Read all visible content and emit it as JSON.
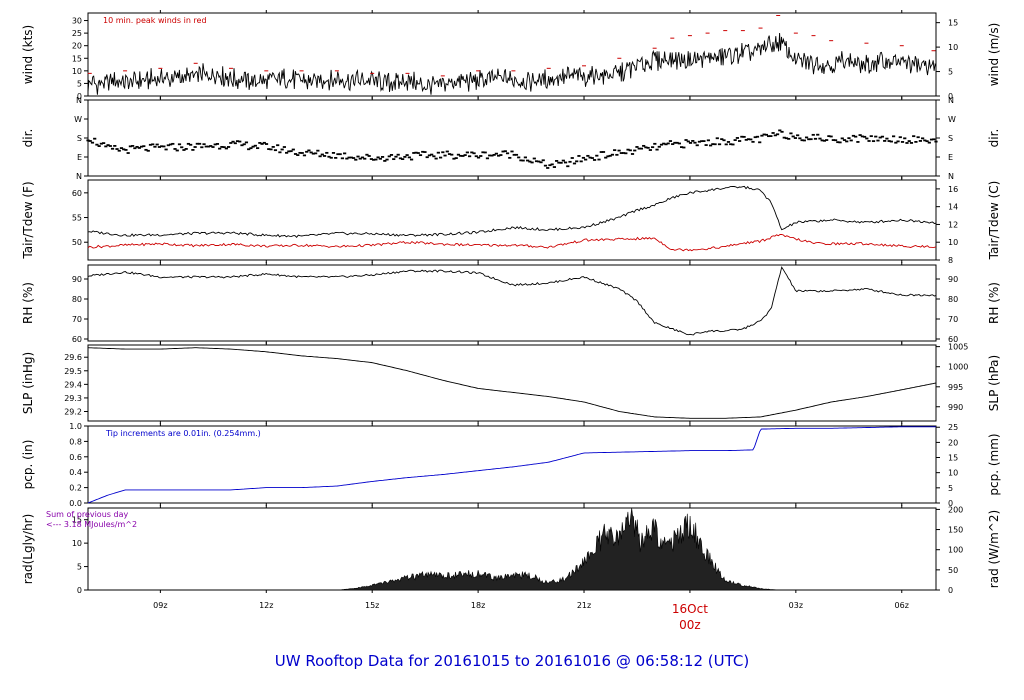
{
  "page": {
    "title": "UW Rooftop Data for 20161015  to  20161016 @ 06:58:12  (UTC)"
  },
  "chart_data": {
    "type": "line",
    "time_axis": {
      "ticks": [
        "09z",
        "12z",
        "15z",
        "18z",
        "21z",
        "00z",
        "03z",
        "06z"
      ],
      "date_label": "16Oct",
      "date_hour": "00z"
    },
    "panels": [
      {
        "id": "wind",
        "type": "line",
        "ylabel_left": "wind (kts)",
        "ylabel_right": "wind (m/s)",
        "ylim": [
          0,
          33
        ],
        "yticks_left": [
          0,
          5,
          10,
          15,
          20,
          25,
          30
        ],
        "yticks_right": [
          {
            "label": "0",
            "value": 0
          },
          {
            "label": "5",
            "value": 9.72
          },
          {
            "label": "10",
            "value": 19.44
          },
          {
            "label": "15",
            "value": 29.16
          }
        ],
        "annotation": "10 min. peak winds in red",
        "series": [
          {
            "color": "#000000",
            "x": [
              6.95,
              7.5,
              8.0,
              8.5,
              9.0,
              9.5,
              10.0,
              10.5,
              11.0,
              11.5,
              12.0,
              12.5,
              13.0,
              13.5,
              14.0,
              14.5,
              15.0,
              15.5,
              16.0,
              16.5,
              17.0,
              17.5,
              18.0,
              18.5,
              19.0,
              19.5,
              20.0,
              20.5,
              21.0,
              21.5,
              22.0,
              22.5,
              23.0,
              23.5,
              24.0,
              24.5,
              25.0,
              25.5,
              26.0,
              26.5,
              27.0,
              27.5,
              28.0,
              28.5,
              29.0,
              29.5,
              30.0,
              30.5,
              30.97
            ],
            "y": [
              5,
              5,
              6,
              6,
              7,
              7,
              8,
              9,
              7,
              6,
              6,
              7,
              6,
              6,
              7,
              6,
              6,
              5,
              6,
              4,
              5,
              6,
              6,
              7,
              7,
              6,
              7,
              8,
              8,
              8,
              9,
              12,
              14,
              15,
              14,
              15,
              16,
              17,
              18,
              22,
              14,
              13,
              13,
              14,
              12,
              14,
              13,
              12,
              12
            ]
          }
        ],
        "peaks": {
          "color": "#cc0000",
          "x": [
            7.0,
            8.0,
            9.0,
            10.0,
            11.0,
            12.0,
            13.0,
            14.0,
            15.0,
            16.0,
            17.0,
            18.0,
            19.0,
            20.0,
            21.0,
            22.0,
            23.0,
            23.5,
            24.0,
            24.5,
            25.0,
            25.5,
            26.0,
            26.5,
            27.0,
            27.5,
            28.0,
            29.0,
            30.0,
            30.9
          ],
          "y": [
            9,
            10,
            11,
            13,
            11,
            10,
            10,
            10,
            9,
            9,
            8,
            10,
            10,
            11,
            12,
            15,
            19,
            23,
            24,
            25,
            26,
            26,
            27,
            32,
            25,
            24,
            22,
            21,
            20,
            18
          ]
        }
      },
      {
        "id": "dir",
        "type": "scatter",
        "ylabel_left": "dir.",
        "ylabel_right": "dir.",
        "ylim": [
          0,
          360
        ],
        "yticks_left": [
          {
            "label": "N",
            "value": 0
          },
          {
            "label": "E",
            "value": 90
          },
          {
            "label": "S",
            "value": 180
          },
          {
            "label": "W",
            "value": 270
          },
          {
            "label": "N",
            "value": 360
          }
        ],
        "yticks_right": [
          {
            "label": "N",
            "value": 0
          },
          {
            "label": "E",
            "value": 90
          },
          {
            "label": "S",
            "value": 180
          },
          {
            "label": "W",
            "value": 270
          },
          {
            "label": "N",
            "value": 360
          }
        ],
        "series": [
          {
            "color": "#000000",
            "x": [
              6.95,
              7.5,
              8.0,
              9.0,
              10.0,
              11.0,
              12.0,
              13.0,
              14.0,
              15.0,
              16.0,
              17.0,
              18.0,
              19.0,
              19.5,
              20.0,
              20.5,
              21.0,
              22.0,
              23.0,
              23.5,
              24.0,
              25.0,
              26.0,
              26.5,
              27.0,
              28.0,
              29.0,
              30.0,
              30.97
            ],
            "y": [
              185,
              130,
              125,
              135,
              140,
              150,
              140,
              110,
              100,
              85,
              95,
              100,
              100,
              105,
              75,
              50,
              60,
              85,
              110,
              135,
              150,
              155,
              165,
              175,
              200,
              190,
              175,
              180,
              175,
              170
            ]
          }
        ]
      },
      {
        "id": "temp",
        "type": "line",
        "ylabel_left": "Tair/Tdew (F)",
        "ylabel_right": "Tair/Tdew (C)",
        "ylim": [
          46.4,
          62.6
        ],
        "yticks_left": [
          50,
          55,
          60
        ],
        "yticks_right": [
          {
            "label": "8",
            "value": 46.4
          },
          {
            "label": "10",
            "value": 50
          },
          {
            "label": "12",
            "value": 53.6
          },
          {
            "label": "14",
            "value": 57.2
          },
          {
            "label": "16",
            "value": 60.8
          }
        ],
        "series": [
          {
            "name": "Tair",
            "color": "#000000",
            "x": [
              6.95,
              8.0,
              9.0,
              10.0,
              11.0,
              12.0,
              13.0,
              14.0,
              15.0,
              16.0,
              17.0,
              18.0,
              19.0,
              20.0,
              21.0,
              22.0,
              22.5,
              23.0,
              23.5,
              24.0,
              24.5,
              25.0,
              25.5,
              26.0,
              26.3,
              26.6,
              27.0,
              28.0,
              29.0,
              30.0,
              30.97
            ],
            "y": [
              52.2,
              51.4,
              51.5,
              51.8,
              51.9,
              51.4,
              51.2,
              51.8,
              51.7,
              51.4,
              51.6,
              52.0,
              53.0,
              52.5,
              53.0,
              55.0,
              56.5,
              57.5,
              59.0,
              60.0,
              60.5,
              61.0,
              61.2,
              60.5,
              58.0,
              52.5,
              54.0,
              54.5,
              54.0,
              54.5,
              54.0
            ]
          },
          {
            "name": "Tdew",
            "color": "#cc0000",
            "x": [
              6.95,
              8.0,
              9.0,
              10.0,
              11.0,
              12.0,
              13.0,
              14.0,
              15.0,
              16.0,
              17.0,
              18.0,
              19.0,
              20.0,
              21.0,
              22.0,
              23.0,
              23.5,
              24.0,
              24.5,
              25.0,
              25.5,
              26.0,
              26.5,
              26.8,
              27.5,
              28.0,
              29.0,
              30.0,
              30.97
            ],
            "y": [
              49.0,
              49.4,
              49.7,
              49.3,
              49.6,
              49.2,
              49.4,
              49.1,
              49.4,
              50.0,
              49.6,
              49.4,
              49.4,
              49.0,
              50.4,
              50.6,
              50.8,
              48.5,
              48.5,
              48.7,
              49.1,
              49.8,
              50.2,
              51.5,
              51.0,
              49.8,
              49.7,
              49.7,
              49.2,
              49.1
            ]
          }
        ]
      },
      {
        "id": "rh",
        "type": "line",
        "ylabel_left": "RH (%)",
        "ylabel_right": "RH (%)",
        "ylim": [
          59,
          97
        ],
        "yticks_left": [
          60,
          70,
          80,
          90
        ],
        "yticks_right": [
          {
            "label": "60",
            "value": 60
          },
          {
            "label": "70",
            "value": 70
          },
          {
            "label": "80",
            "value": 80
          },
          {
            "label": "90",
            "value": 90
          }
        ],
        "series": [
          {
            "color": "#000000",
            "x": [
              6.95,
              8.0,
              9.0,
              10.0,
              11.0,
              12.0,
              13.0,
              14.0,
              15.0,
              16.0,
              17.0,
              18.0,
              19.0,
              20.0,
              21.0,
              22.0,
              22.5,
              23.0,
              23.5,
              24.0,
              24.5,
              25.0,
              25.5,
              26.0,
              26.3,
              26.6,
              27.0,
              28.0,
              29.0,
              30.0,
              30.97
            ],
            "y": [
              91.5,
              93.5,
              91.0,
              91.0,
              91.0,
              92.5,
              91.0,
              91.0,
              92.0,
              94.0,
              94.0,
              93.0,
              87.0,
              88.0,
              91.0,
              85.0,
              79.0,
              68.0,
              65.0,
              62.0,
              64.0,
              64.0,
              65.0,
              69.0,
              75.0,
              96.0,
              84.0,
              84.0,
              85.0,
              82.0,
              82.0
            ]
          }
        ]
      },
      {
        "id": "slp",
        "type": "line",
        "ylabel_left": "SLP (inHg)",
        "ylabel_right": "SLP (hPa)",
        "ylim": [
          29.13,
          29.69
        ],
        "yticks_left": [
          29.2,
          29.3,
          29.4,
          29.5,
          29.6
        ],
        "yticks_right": [
          {
            "label": "990",
            "value": 29.235
          },
          {
            "label": "995",
            "value": 29.382
          },
          {
            "label": "1000",
            "value": 29.53
          },
          {
            "label": "1005",
            "value": 29.678
          }
        ],
        "series": [
          {
            "color": "#000000",
            "x": [
              6.95,
              8.0,
              9.0,
              10.0,
              11.0,
              12.0,
              13.0,
              14.0,
              15.0,
              16.0,
              17.0,
              18.0,
              19.0,
              20.0,
              21.0,
              22.0,
              23.0,
              24.0,
              25.0,
              26.0,
              27.0,
              28.0,
              29.0,
              30.0,
              30.97
            ],
            "y": [
              29.67,
              29.66,
              29.66,
              29.67,
              29.66,
              29.64,
              29.61,
              29.59,
              29.56,
              29.5,
              29.43,
              29.37,
              29.34,
              29.31,
              29.27,
              29.2,
              29.16,
              29.15,
              29.15,
              29.16,
              29.21,
              29.27,
              29.31,
              29.36,
              29.41
            ]
          }
        ]
      },
      {
        "id": "pcp",
        "type": "line",
        "ylabel_left": "pcp. (in)",
        "ylabel_right": "pcp. (mm)",
        "ylim": [
          0,
          1.0
        ],
        "yticks_left": [
          0.0,
          0.2,
          0.4,
          0.6,
          0.8,
          1.0
        ],
        "yticks_right": [
          {
            "label": "0",
            "value": 0
          },
          {
            "label": "5",
            "value": 0.197
          },
          {
            "label": "10",
            "value": 0.394
          },
          {
            "label": "15",
            "value": 0.591
          },
          {
            "label": "20",
            "value": 0.787
          },
          {
            "label": "25",
            "value": 0.984
          }
        ],
        "annotation": "Tip increments are 0.01in. (0.254mm.)",
        "series": [
          {
            "color": "#0000cc",
            "x": [
              6.95,
              7.5,
              8.0,
              9.0,
              10.0,
              11.0,
              12.0,
              13.0,
              14.0,
              15.0,
              16.0,
              17.0,
              18.0,
              19.0,
              20.0,
              21.0,
              22.0,
              23.0,
              24.0,
              25.0,
              25.8,
              26.0,
              27.0,
              28.0,
              29.0,
              30.0,
              30.97
            ],
            "y": [
              0.0,
              0.1,
              0.17,
              0.17,
              0.17,
              0.17,
              0.2,
              0.2,
              0.22,
              0.28,
              0.33,
              0.37,
              0.42,
              0.47,
              0.53,
              0.65,
              0.66,
              0.67,
              0.68,
              0.68,
              0.69,
              0.96,
              0.97,
              0.97,
              0.98,
              0.99,
              0.99
            ]
          }
        ]
      },
      {
        "id": "rad",
        "type": "area",
        "ylabel_left": "rad(Lgly/hr)",
        "ylabel_right": "rad (W/m^2)",
        "ylim": [
          0,
          17.5
        ],
        "yticks_left": [
          0,
          5,
          10,
          15
        ],
        "yticks_right": [
          {
            "label": "0",
            "value": 0
          },
          {
            "label": "50",
            "value": 4.3
          },
          {
            "label": "100",
            "value": 8.6
          },
          {
            "label": "150",
            "value": 12.9
          },
          {
            "label": "200",
            "value": 17.2
          }
        ],
        "annotation_lines": [
          "Sum of previous day",
          "<--- 3.18 MJoules/m^2"
        ],
        "series": [
          {
            "color": "#000000",
            "x": [
              6.95,
              14.0,
              14.5,
              15.0,
              15.5,
              16.0,
              16.5,
              17.0,
              17.5,
              18.0,
              18.5,
              19.0,
              19.5,
              20.0,
              20.5,
              21.0,
              21.3,
              21.6,
              22.0,
              22.3,
              22.6,
              23.0,
              23.3,
              23.6,
              24.0,
              24.5,
              25.0,
              25.5,
              26.0,
              26.5,
              30.97
            ],
            "y": [
              0,
              0,
              0.3,
              1.0,
              1.8,
              2.6,
              3.2,
              3.0,
              3.2,
              3.6,
              2.4,
              3.3,
              3.0,
              1.5,
              2.5,
              6.0,
              9.0,
              11.5,
              10.5,
              17.0,
              10.0,
              13.0,
              9.0,
              11.0,
              14.0,
              7.0,
              2.0,
              1.0,
              0.3,
              0,
              0
            ]
          }
        ]
      }
    ]
  }
}
